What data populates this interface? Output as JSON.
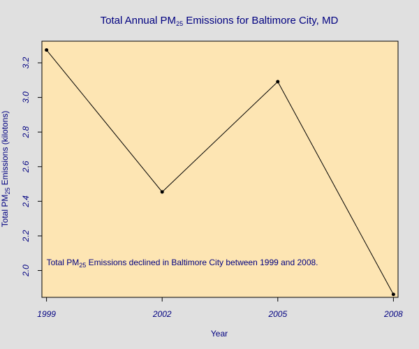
{
  "colors": {
    "page_background": "#e0e0e0",
    "plot_background": "#fde5b3",
    "text": "#000080",
    "line": "#000000",
    "point": "#000000"
  },
  "chart_data": {
    "type": "line",
    "title": {
      "prefix": "Total Annual PM",
      "subscript": "25",
      "suffix": " Emissions for Baltimore City, MD"
    },
    "xlabel": "Year",
    "ylabel": {
      "prefix": "Total PM",
      "subscript": "25",
      "suffix": " Emissions (kilotons)"
    },
    "x": [
      1999,
      2002,
      2005,
      2008
    ],
    "x_tick_labels": [
      "1999",
      "2002",
      "2005",
      "2008"
    ],
    "y_ticks": [
      2.0,
      2.2,
      2.4,
      2.6,
      2.8,
      3.0,
      3.2
    ],
    "y_tick_labels": [
      "2.0",
      "2.2",
      "2.4",
      "2.6",
      "2.8",
      "3.0",
      "3.2"
    ],
    "series": [
      {
        "values": [
          3.274,
          2.454,
          3.091,
          1.862
        ]
      }
    ],
    "xlim": [
      1998.88,
      2008.12
    ],
    "ylim": [
      1.845,
      3.325
    ],
    "grid": false,
    "annotation": {
      "prefix": "Total PM",
      "subscript": "25",
      "suffix": " Emissions declined in Baltimore City between 1999 and 2008.",
      "x": 1999,
      "y": 2.03
    }
  }
}
